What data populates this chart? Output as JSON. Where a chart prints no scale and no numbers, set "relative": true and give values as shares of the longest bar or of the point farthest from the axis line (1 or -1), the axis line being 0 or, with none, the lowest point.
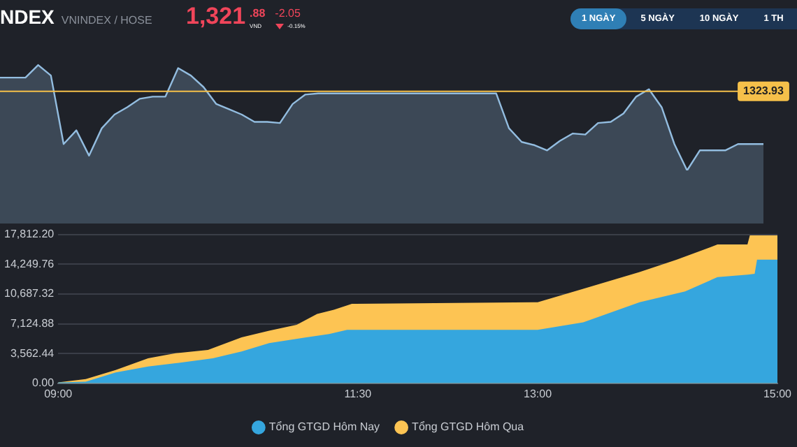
{
  "chart_data": [
    {
      "type": "area",
      "title": "NDEX",
      "subtitle": "VNINDEX / HOSE",
      "annotations": [
        "1,321",
        ".88",
        "VND",
        "-2.05",
        "-0.15%",
        "1 NGÀY",
        "5 NGÀY",
        "10 NGÀY",
        "1 TH",
        {
          "text": "1323.93",
          "y": 0.75
        }
      ],
      "relative": true,
      "categories": [
        null,
        null,
        null,
        null,
        null,
        null,
        null,
        null,
        null,
        null,
        null,
        null,
        null,
        null,
        null,
        null,
        null,
        null,
        null,
        null,
        null,
        null,
        null,
        null,
        null,
        null,
        null,
        null,
        null,
        null,
        null,
        null,
        null,
        null,
        null,
        null,
        null,
        null,
        null,
        null,
        null,
        null,
        null,
        null,
        null,
        null,
        null,
        null,
        null,
        null,
        null,
        null,
        null,
        null,
        null,
        null,
        null,
        null,
        null,
        null,
        null
      ],
      "series": [
        {
          "color": "#93bde0",
          "values": [
            0.88,
            0.88,
            0.88,
            1.0,
            0.9,
            0.25,
            0.38,
            0.14,
            0.4,
            0.53,
            0.6,
            0.68,
            0.7,
            0.7,
            0.97,
            0.9,
            0.79,
            0.63,
            0.58,
            0.53,
            0.46,
            0.46,
            0.45,
            0.63,
            0.72,
            0.73,
            0.73,
            0.73,
            0.73,
            0.73,
            0.73,
            0.73,
            0.73,
            0.73,
            0.73,
            0.73,
            0.73,
            0.73,
            0.73,
            0.73,
            0.4,
            0.27,
            0.24,
            0.19,
            0.28,
            0.35,
            0.34,
            0.45,
            0.46,
            0.54,
            0.7,
            0.77,
            0.6,
            0.25,
            0.0,
            0.19,
            0.19,
            0.19,
            0.25,
            0.25,
            0.25
          ]
        }
      ],
      "ref_lines": [
        {
          "axis": "y",
          "value": 0.75,
          "color": "#f5c04a"
        }
      ]
    },
    {
      "type": "area",
      "xlim": [
        9,
        15
      ],
      "xticks": [
        {
          "value": 9,
          "label": "09:00"
        },
        {
          "value": 11.5,
          "label": "11:30"
        },
        {
          "value": 13,
          "label": "13:00"
        },
        {
          "value": 15,
          "label": "15:00"
        }
      ],
      "ylim": [
        0,
        17812.2
      ],
      "yticks": [
        {
          "value": 0,
          "label": "0.00"
        },
        {
          "value": 3562.44,
          "label": "3,562.44"
        },
        {
          "value": 7124.88,
          "label": "7,124.88"
        },
        {
          "value": 10687.32,
          "label": "10,687.32"
        },
        {
          "value": 14249.76,
          "label": "14,249.76"
        },
        {
          "value": 17812.2,
          "label": "17,812.20"
        }
      ],
      "grid": "y",
      "legend": "bottom",
      "series": [
        {
          "name": "Tổng GTGD Hôm Nay",
          "color": "#35a6de",
          "x": [
            9.0,
            9.23,
            9.48,
            9.75,
            9.98,
            10.29,
            10.53,
            10.76,
            11.07,
            11.26,
            11.41,
            13.0,
            13.38,
            13.85,
            14.23,
            14.5,
            14.75,
            14.81,
            14.83,
            15.0
          ],
          "values": [
            100,
            200,
            1300,
            2000,
            2400,
            3000,
            3800,
            4800,
            5500,
            5900,
            6400,
            6400,
            7300,
            9700,
            11000,
            12700,
            13000,
            13100,
            14800,
            14800
          ]
        },
        {
          "name": "Tổng GTGD Hôm Qua",
          "color": "#fdc453",
          "x": [
            9.0,
            9.23,
            9.48,
            9.75,
            9.98,
            10.25,
            10.53,
            10.76,
            10.99,
            11.16,
            11.3,
            11.45,
            13.0,
            13.38,
            13.85,
            14.16,
            14.5,
            14.75,
            14.77,
            15.0
          ],
          "values": [
            100,
            500,
            1600,
            3000,
            3600,
            4000,
            5500,
            6300,
            7000,
            8300,
            8800,
            9500,
            9700,
            11300,
            13300,
            14800,
            16600,
            16600,
            17700,
            17700
          ]
        }
      ]
    }
  ]
}
